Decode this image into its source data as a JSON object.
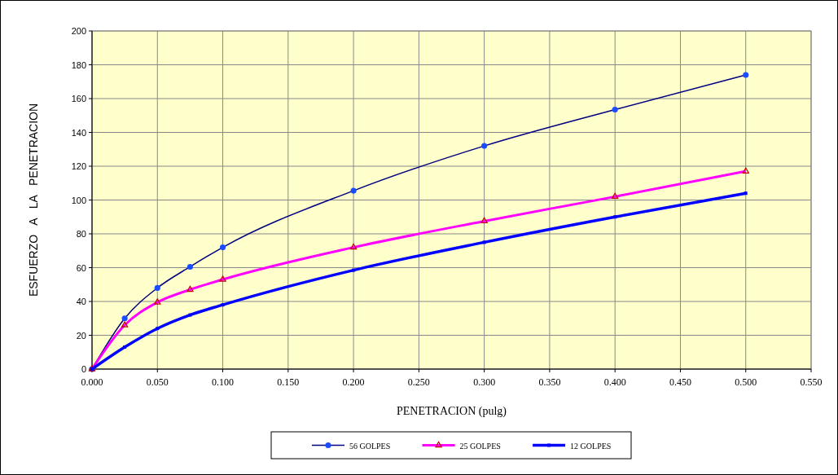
{
  "chart_data": {
    "type": "line",
    "xlabel": "PENETRACION (pulg)",
    "ylabel": "ESFUERZO A LA PENETRACION",
    "x": [
      0,
      0.025,
      0.05,
      0.075,
      0.1,
      0.2,
      0.3,
      0.4,
      0.5
    ],
    "series": [
      {
        "name": "56 GOLPES",
        "color": "#000080",
        "marker": "circle",
        "values": [
          0,
          30,
          48,
          60.5,
          72,
          105.5,
          132,
          153.5,
          174
        ]
      },
      {
        "name": "25 GOLPES",
        "color": "#ff00ff",
        "marker": "triangle",
        "values": [
          0,
          26,
          39.5,
          47,
          53,
          72,
          87.5,
          102,
          117
        ]
      },
      {
        "name": "12 GOLPES",
        "color": "#0000ff",
        "marker": "square",
        "values": [
          0,
          13,
          24,
          32,
          38,
          58.5,
          75,
          90,
          104
        ]
      }
    ],
    "xlim": [
      0,
      0.55
    ],
    "xticks": [
      {
        "value": 0,
        "label": "0.000"
      },
      {
        "value": 0.05,
        "label": "0.050"
      },
      {
        "value": 0.1,
        "label": "0.100"
      },
      {
        "value": 0.15,
        "label": "0.150"
      },
      {
        "value": 0.2,
        "label": "0.200"
      },
      {
        "value": 0.25,
        "label": "0.250"
      },
      {
        "value": 0.3,
        "label": "0.300"
      },
      {
        "value": 0.35,
        "label": "0.350"
      },
      {
        "value": 0.4,
        "label": "0.400"
      },
      {
        "value": 0.45,
        "label": "0.450"
      },
      {
        "value": 0.5,
        "label": "0.500"
      },
      {
        "value": 0.55,
        "label": "0.550"
      }
    ],
    "ylim": [
      0,
      200
    ],
    "yticks": [
      0,
      20,
      40,
      60,
      80,
      100,
      120,
      140,
      160,
      180,
      200
    ],
    "grid": true,
    "legend": "bottom",
    "line_style": "solid"
  }
}
